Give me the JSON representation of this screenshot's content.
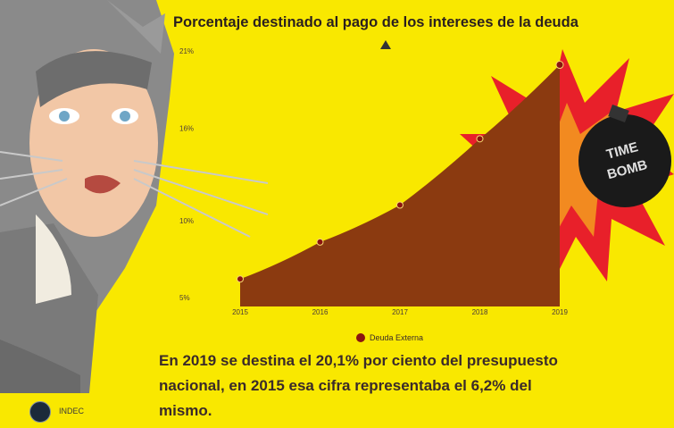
{
  "title": "Porcentaje destinado al pago de los intereses de la deuda",
  "caption": "En 2019 se destina el 20,1% por ciento del presupuesto nacional, en 2015 esa cifra representaba el 6,2% del mismo.",
  "source": "INDEC",
  "bomb_text": "TIME BOMB",
  "colors": {
    "background": "#f9e800",
    "area": "#8b3a10",
    "point": "#8b1410",
    "burst": "#e8202a"
  },
  "chart_data": {
    "type": "area",
    "x": [
      "2015",
      "2016",
      "2017",
      "2018",
      "2019"
    ],
    "series": [
      {
        "name": "Deuda Externa",
        "values": [
          6.2,
          8.6,
          11.0,
          15.3,
          20.1
        ]
      }
    ],
    "ylim": [
      5,
      21
    ],
    "yticks": [
      "5%",
      "10%",
      "16%",
      "21%"
    ],
    "ytick_values": [
      5,
      10,
      16,
      21
    ],
    "legend": "bottom",
    "grid": false
  }
}
